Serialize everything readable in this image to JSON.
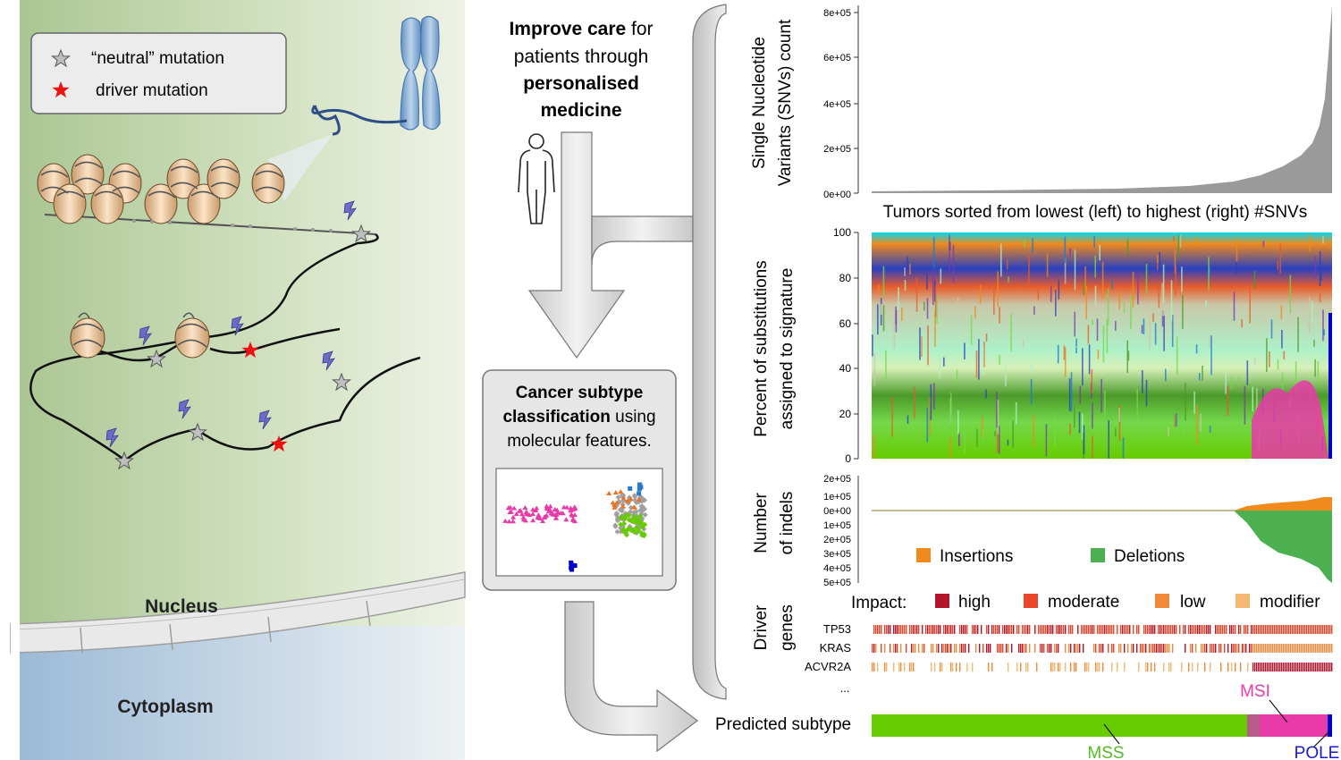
{
  "legend": {
    "neutral": "“neutral” mutation",
    "driver": "driver mutation"
  },
  "cell": {
    "nucleus": "Nucleus",
    "cytoplasm": "Cytoplasm"
  },
  "flow": {
    "care_line1_bold": "Improve care",
    "care_line1_rest": " for",
    "care_line2": "patients through",
    "care_line3": "personalised",
    "care_line4": "medicine",
    "subtype_line1": "Cancer subtype",
    "subtype_line2_bold": "classification",
    "subtype_line2_rest": " using",
    "subtype_line3": "molecular features."
  },
  "colors": {
    "mss": "#66cc00",
    "msi": "#e83aa8",
    "pole": "#0000cc",
    "insertion": "#f08a1c",
    "deletion": "#4caf50",
    "impact_high": "#b5152b",
    "impact_moderate": "#e8452a",
    "impact_low": "#f08a3a",
    "impact_modifier": "#f5b870",
    "snv_bar": "#9a9a9a"
  },
  "panels": {
    "snv": {
      "ylabel_line1": "Single Nucleotide",
      "ylabel_line2": "Variants (SNVs) count",
      "ticks": [
        "8e+05",
        "6e+05",
        "4e+05",
        "2e+05",
        "0e+00"
      ],
      "caption": "Tumors sorted from lowest (left) to highest (right) #SNVs"
    },
    "signature": {
      "ylabel_line1": "Percent of substitutions",
      "ylabel_line2": "assigned to signature",
      "ticks": [
        "100",
        "80",
        "60",
        "40",
        "20",
        "0"
      ]
    },
    "indels": {
      "ylabel_line1": "Number",
      "ylabel_line2": "of indels",
      "ticks": [
        "2e+05",
        "1e+05",
        "0e+00",
        "1e+05",
        "2e+05",
        "3e+05",
        "4e+05",
        "5e+05"
      ],
      "legend_insertions": "Insertions",
      "legend_deletions": "Deletions"
    },
    "drivers": {
      "ylabel_line1": "Driver",
      "ylabel_line2": "genes",
      "impact_label": "Impact:",
      "impact_high": "high",
      "impact_moderate": "moderate",
      "impact_low": "low",
      "impact_modifier": "modifier",
      "genes": [
        "TP53",
        "KRAS",
        "ACVR2A"
      ],
      "more": "..."
    },
    "subtype": {
      "label": "Predicted subtype",
      "mss": "MSS",
      "msi": "MSI",
      "pole": "POLE"
    }
  }
}
